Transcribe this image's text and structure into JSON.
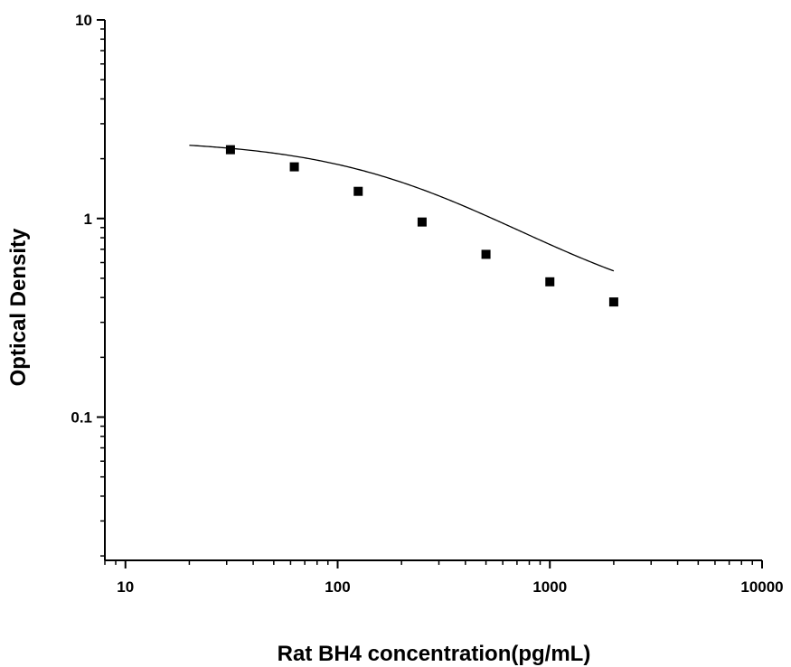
{
  "chart_data": {
    "type": "scatter",
    "title": "",
    "xlabel": "Rat BH4 concentration(pg/mL)",
    "ylabel": "Optical Density",
    "x_scale": "log",
    "y_scale": "log",
    "xlim": [
      8,
      10000
    ],
    "ylim": [
      0.019,
      10
    ],
    "x_ticks": [
      10,
      100,
      1000,
      10000
    ],
    "x_tick_labels": [
      "10",
      "100",
      "1000",
      "10000"
    ],
    "y_ticks": [
      0.1,
      1,
      10
    ],
    "y_tick_labels": [
      "0.1",
      "1",
      "10"
    ],
    "grid": false,
    "legend": "none",
    "colors": {
      "marker": "#000000",
      "curve": "#000000",
      "axes": "#000000"
    },
    "series": [
      {
        "marker": "square",
        "x": [
          31.25,
          62.5,
          125,
          250,
          500,
          1000,
          2000
        ],
        "y": [
          2.22,
          1.82,
          1.37,
          0.96,
          0.66,
          0.48,
          0.38
        ]
      }
    ],
    "fit_curve": {
      "model": "4PL",
      "x_range": [
        20,
        2000
      ],
      "top": 2.5,
      "bottom": 0.3,
      "ec50": 250,
      "slope": 1.0
    }
  }
}
